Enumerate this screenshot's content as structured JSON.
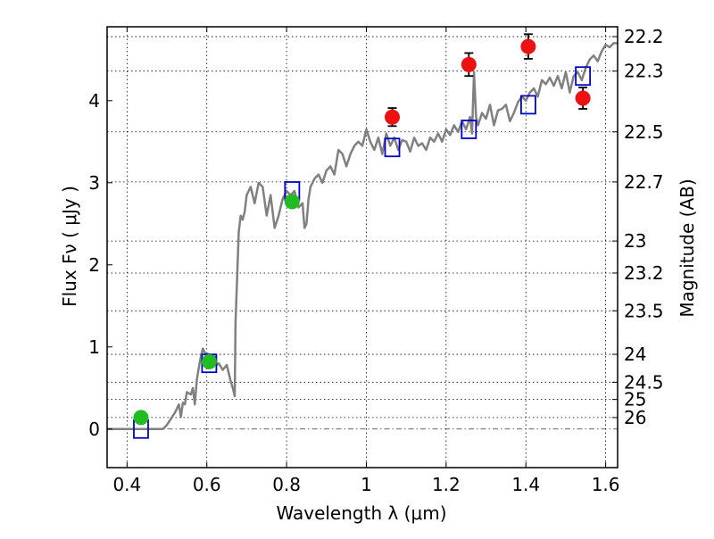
{
  "chart_data": {
    "type": "scatter",
    "title": "",
    "xlabel": "Wavelength  λ (μm)",
    "ylabel": "Flux  Fν  ( μJy )",
    "y2label": "Magnitude (AB)",
    "xlim": [
      0.35,
      1.63
    ],
    "ylim": [
      -0.47,
      4.9
    ],
    "xticks": [
      0.4,
      0.6,
      0.8,
      1.0,
      1.2,
      1.4,
      1.6
    ],
    "xtick_labels": [
      "0.4",
      "0.6",
      "0.8",
      "1",
      "1.2",
      "1.4",
      "1.6"
    ],
    "yticks": [
      0,
      1,
      2,
      3,
      4
    ],
    "ytick_labels": [
      "0",
      "1",
      "2",
      "3",
      "4"
    ],
    "y2ticks": [
      {
        "label": "22.2",
        "flux": 4.78
      },
      {
        "label": "22.3",
        "flux": 4.36
      },
      {
        "label": "22.5",
        "flux": 3.62
      },
      {
        "label": "22.7",
        "flux": 3.01
      },
      {
        "label": "23",
        "flux": 2.29
      },
      {
        "label": "23.2",
        "flux": 1.9
      },
      {
        "label": "23.5",
        "flux": 1.44
      },
      {
        "label": "24",
        "flux": 0.91
      },
      {
        "label": "24.5",
        "flux": 0.57
      },
      {
        "label": "25",
        "flux": 0.36
      },
      {
        "label": "26",
        "flux": 0.14
      }
    ],
    "grid": true,
    "zero_line": true,
    "colors": {
      "model": "#808080",
      "green_points": "#22bb22",
      "red_points": "#ee1111",
      "model_boxes": "#0000cc",
      "errorbar": "#000000"
    },
    "series": [
      {
        "kind": "model_spectrum",
        "x": [
          0.35,
          0.45,
          0.49,
          0.5,
          0.52,
          0.53,
          0.535,
          0.54,
          0.545,
          0.55,
          0.56,
          0.565,
          0.57,
          0.575,
          0.58,
          0.585,
          0.59,
          0.595,
          0.6,
          0.61,
          0.62,
          0.625,
          0.63,
          0.64,
          0.65,
          0.66,
          0.665,
          0.67,
          0.672,
          0.68,
          0.685,
          0.69,
          0.695,
          0.7,
          0.71,
          0.72,
          0.73,
          0.74,
          0.75,
          0.76,
          0.77,
          0.78,
          0.79,
          0.8,
          0.81,
          0.82,
          0.83,
          0.84,
          0.845,
          0.85,
          0.855,
          0.86,
          0.87,
          0.88,
          0.89,
          0.9,
          0.91,
          0.92,
          0.93,
          0.94,
          0.95,
          0.96,
          0.97,
          0.98,
          0.99,
          1.0,
          1.01,
          1.02,
          1.03,
          1.04,
          1.05,
          1.06,
          1.07,
          1.08,
          1.09,
          1.1,
          1.11,
          1.12,
          1.13,
          1.14,
          1.15,
          1.16,
          1.17,
          1.18,
          1.19,
          1.2,
          1.21,
          1.22,
          1.23,
          1.24,
          1.25,
          1.26,
          1.265,
          1.27,
          1.275,
          1.28,
          1.29,
          1.3,
          1.31,
          1.32,
          1.33,
          1.34,
          1.35,
          1.36,
          1.37,
          1.38,
          1.39,
          1.4,
          1.41,
          1.42,
          1.43,
          1.44,
          1.45,
          1.46,
          1.47,
          1.48,
          1.49,
          1.5,
          1.51,
          1.52,
          1.53,
          1.54,
          1.55,
          1.56,
          1.57,
          1.58,
          1.59,
          1.6,
          1.61,
          1.62,
          1.63
        ],
        "y": [
          0.0,
          0.0,
          0.0,
          0.05,
          0.2,
          0.3,
          0.15,
          0.32,
          0.3,
          0.45,
          0.42,
          0.5,
          0.3,
          0.6,
          0.75,
          0.88,
          0.98,
          0.93,
          0.92,
          0.9,
          0.88,
          0.78,
          0.8,
          0.72,
          0.78,
          0.58,
          0.5,
          0.4,
          1.3,
          2.4,
          2.6,
          2.55,
          2.65,
          2.85,
          2.95,
          2.75,
          3.0,
          2.95,
          2.6,
          2.85,
          2.45,
          2.6,
          2.8,
          2.9,
          2.85,
          2.9,
          2.7,
          2.75,
          2.45,
          2.5,
          2.8,
          2.95,
          3.05,
          3.1,
          3.0,
          3.15,
          3.2,
          3.1,
          3.4,
          3.35,
          3.2,
          3.35,
          3.45,
          3.5,
          3.45,
          3.65,
          3.5,
          3.4,
          3.55,
          3.35,
          3.6,
          3.45,
          3.55,
          3.4,
          3.52,
          3.5,
          3.38,
          3.55,
          3.45,
          3.48,
          3.4,
          3.55,
          3.5,
          3.6,
          3.5,
          3.65,
          3.58,
          3.7,
          3.62,
          3.75,
          3.65,
          3.8,
          3.6,
          4.35,
          3.8,
          3.7,
          3.85,
          3.78,
          3.95,
          3.7,
          3.88,
          3.9,
          3.95,
          3.75,
          3.85,
          3.98,
          4.05,
          4.0,
          4.1,
          4.15,
          4.05,
          4.25,
          4.2,
          4.28,
          4.18,
          4.3,
          4.15,
          4.35,
          4.1,
          4.3,
          4.35,
          4.25,
          4.4,
          4.5,
          4.55,
          4.48,
          4.6,
          4.68,
          4.65,
          4.7,
          4.7
        ]
      },
      {
        "kind": "observed_green",
        "x": [
          0.435,
          0.606,
          0.814
        ],
        "y": [
          0.14,
          0.82,
          2.77
        ],
        "err": [
          0.05,
          0.06,
          0.06
        ]
      },
      {
        "kind": "observed_red",
        "x": [
          1.065,
          1.257,
          1.406,
          1.543
        ],
        "y": [
          3.8,
          4.44,
          4.66,
          4.03
        ],
        "err": [
          0.11,
          0.14,
          0.15,
          0.13
        ]
      },
      {
        "kind": "model_boxes",
        "x": [
          0.435,
          0.606,
          0.814,
          1.065,
          1.257,
          1.406,
          1.543
        ],
        "y": [
          0.0,
          0.8,
          2.9,
          3.43,
          3.65,
          3.95,
          4.3
        ]
      }
    ]
  }
}
